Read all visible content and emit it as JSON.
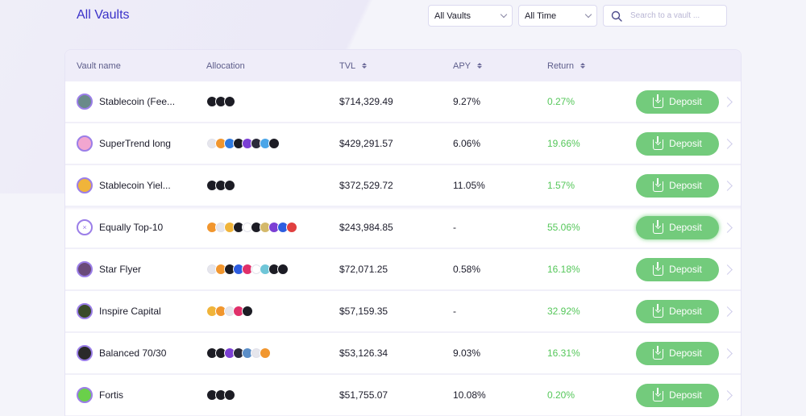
{
  "header": {
    "title": "All Vaults",
    "filters": {
      "vault_type": "All Vaults",
      "time_range": "All Time"
    },
    "search": {
      "placeholder": "Search to a vault ...",
      "value": ""
    }
  },
  "table": {
    "columns": {
      "name": "Vault name",
      "allocation": "Allocation",
      "tvl": "TVL",
      "apy": "APY",
      "return": "Return"
    },
    "deposit_label": "Deposit",
    "rows": [
      {
        "name": "Stablecoin (Fee...",
        "avatar": "masked-figure",
        "avatar_color": "#6a8a8a",
        "allocation": [
          "#1c1c24",
          "#1c1c24",
          "#1c1c24"
        ],
        "tvl": "$714,329.49",
        "apy": "9.27%",
        "return": "0.27%"
      },
      {
        "name": "SuperTrend long",
        "avatar": "swirl",
        "avatar_color": "#f2a6d0",
        "allocation": [
          "#e6e6ec",
          "#f1962e",
          "#2f7ae0",
          "#1c1c24",
          "#7b3fd4",
          "#2a2a3a",
          "#4aa5e8",
          "#1c1c24"
        ],
        "tvl": "$429,291.57",
        "apy": "6.06%",
        "return": "19.66%"
      },
      {
        "name": "Stablecoin Yiel...",
        "avatar": "coin-stack",
        "avatar_color": "#f0b43a",
        "allocation": [
          "#1c1c24",
          "#1c1c24",
          "#1c1c24"
        ],
        "tvl": "$372,529.72",
        "apy": "11.05%",
        "return": "1.57%"
      },
      {
        "name": "Equally Top-10",
        "avatar": "x-mark",
        "avatar_color": "#ffffff",
        "allocation": [
          "#f1962e",
          "#e6e6ec",
          "#f0b43a",
          "#1c1c24",
          "#ffffff",
          "#1c1c24",
          "#d4b96a",
          "#7b3fd4",
          "#2d5de0",
          "#e04040"
        ],
        "tvl": "$243,984.85",
        "apy": "-",
        "return": "55.06%"
      },
      {
        "name": "Star Flyer",
        "avatar": "star",
        "avatar_color": "#6a4a7a",
        "allocation": [
          "#e6e6ec",
          "#f1962e",
          "#1c1c24",
          "#2d5de0",
          "#e0306a",
          "#ffffff",
          "#6fc6d8",
          "#1c1c24",
          "#1c1c24"
        ],
        "tvl": "$72,071.25",
        "apy": "0.58%",
        "return": "16.18%"
      },
      {
        "name": "Inspire Capital",
        "avatar": "mosaic",
        "avatar_color": "#3a4a2a",
        "allocation": [
          "#f0b43a",
          "#f1962e",
          "#e6e6ec",
          "#e0306a",
          "#1c1c24"
        ],
        "tvl": "$57,159.35",
        "apy": "-",
        "return": "32.92%"
      },
      {
        "name": "Balanced 70/30",
        "avatar": "scales",
        "avatar_color": "#2a2a2a",
        "allocation": [
          "#1c1c24",
          "#1c1c24",
          "#7b3fd4",
          "#2a2a3a",
          "#5b8ec8",
          "#e6e6ec",
          "#f1962e"
        ],
        "tvl": "$53,126.34",
        "apy": "9.03%",
        "return": "16.31%"
      },
      {
        "name": "Fortis",
        "avatar": "leaf",
        "avatar_color": "#6ad04a",
        "allocation": [
          "#1c1c24",
          "#1c1c24",
          "#1c1c24"
        ],
        "tvl": "$51,755.07",
        "apy": "10.08%",
        "return": "0.20%"
      }
    ]
  },
  "colors": {
    "accent": "#3a31c9",
    "positive": "#55c75a",
    "deposit_button": "#73cb7c"
  }
}
